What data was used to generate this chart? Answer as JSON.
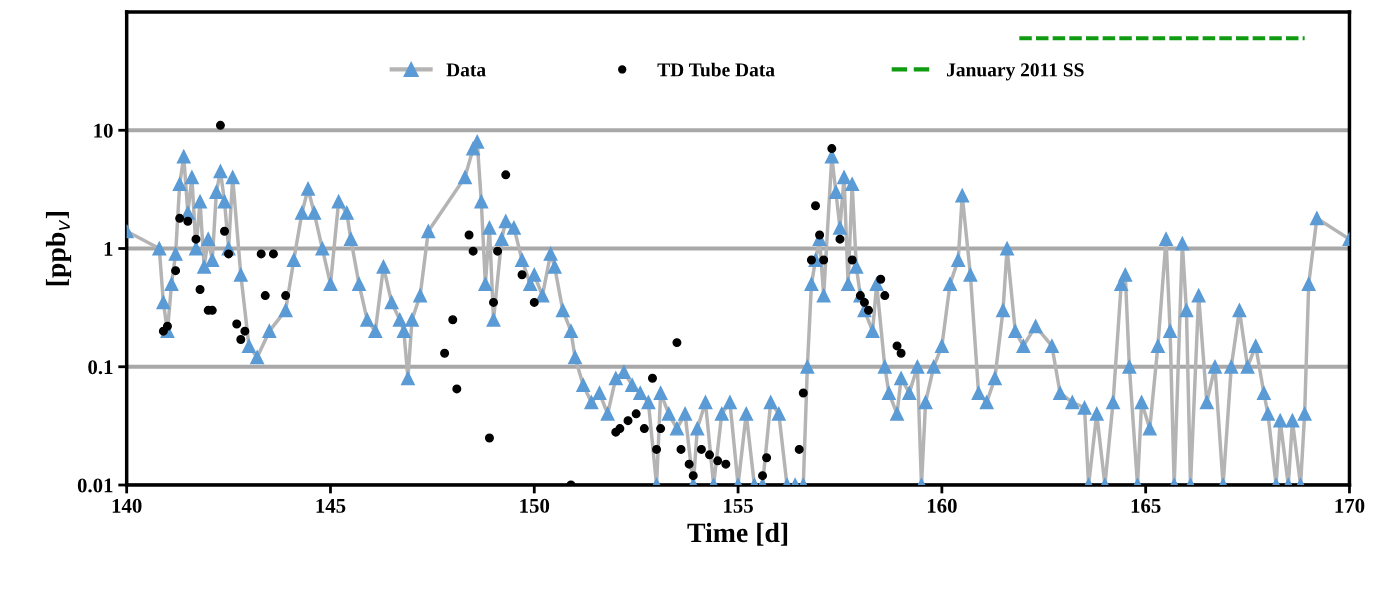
{
  "chart_data": {
    "type": "line",
    "xlabel": "Time [d]",
    "ylabel": "[ppb$_{v}$]",
    "log": "y",
    "xlim": [
      140,
      170
    ],
    "xticks": [
      140,
      145,
      150,
      155,
      160,
      165,
      170
    ],
    "ylim": [
      0.01,
      100
    ],
    "yticks": [
      {
        "value": 0.01,
        "label": "0.01"
      },
      {
        "value": 0.1,
        "label": "0.1"
      },
      {
        "value": 1,
        "label": "1"
      },
      {
        "value": 10,
        "label": "10"
      }
    ],
    "grid": "y",
    "legend": "top",
    "series": [
      {
        "name": "Data",
        "color": "#5b9bd5",
        "marker": "triangle",
        "line_style": "solid",
        "x": [
          140.0,
          140.8,
          140.9,
          141.0,
          141.1,
          141.2,
          141.3,
          141.4,
          141.5,
          141.6,
          141.7,
          141.8,
          141.9,
          142.0,
          142.1,
          142.2,
          142.3,
          142.4,
          142.5,
          142.6,
          142.8,
          143.0,
          143.2,
          143.5,
          143.9,
          144.1,
          144.3,
          144.45,
          144.6,
          144.8,
          145.0,
          145.2,
          145.4,
          145.5,
          145.7,
          145.9,
          146.1,
          146.3,
          146.5,
          146.7,
          146.8,
          146.9,
          147.0,
          147.2,
          147.4,
          148.3,
          148.5,
          148.6,
          148.7,
          148.8,
          148.9,
          149.0,
          149.2,
          149.3,
          149.5,
          149.7,
          149.9,
          150.0,
          150.2,
          150.4,
          150.5,
          150.7,
          150.9,
          151.0,
          151.2,
          151.4,
          151.6,
          151.8,
          152.0,
          152.2,
          152.4,
          152.6,
          152.8,
          153.0,
          153.1,
          153.3,
          153.5,
          153.7,
          153.9,
          154.0,
          154.2,
          154.4,
          154.6,
          154.8,
          155.0,
          155.2,
          155.4,
          155.6,
          155.8,
          156.0,
          156.2,
          156.4,
          156.6,
          156.7,
          156.8,
          156.9,
          157.0,
          157.1,
          157.3,
          157.4,
          157.5,
          157.6,
          157.7,
          157.8,
          157.9,
          158.0,
          158.1,
          158.3,
          158.4,
          158.6,
          158.7,
          158.9,
          159.0,
          159.2,
          159.4,
          159.5,
          159.6,
          159.8,
          160.0,
          160.2,
          160.4,
          160.5,
          160.7,
          160.9,
          161.1,
          161.3,
          161.5,
          161.6,
          161.8,
          162.0,
          162.3,
          162.7,
          162.9,
          163.2,
          163.5,
          163.6,
          163.8,
          164.0,
          164.2,
          164.4,
          164.5,
          164.6,
          164.8,
          164.9,
          165.1,
          165.3,
          165.5,
          165.6,
          165.7,
          165.9,
          166.0,
          166.1,
          166.3,
          166.5,
          166.7,
          166.9,
          167.1,
          167.3,
          167.5,
          167.7,
          167.9,
          168.0,
          168.2,
          168.3,
          168.5,
          168.6,
          168.8,
          168.9,
          169.0,
          169.2,
          170.0
        ],
        "values": [
          1.4,
          1.0,
          0.35,
          0.2,
          0.5,
          0.9,
          3.5,
          6,
          2,
          4,
          1.0,
          2.5,
          0.7,
          1.2,
          0.8,
          3,
          4.5,
          2.5,
          1.0,
          4,
          0.6,
          0.15,
          0.12,
          0.2,
          0.3,
          0.8,
          2,
          3.2,
          2,
          1,
          0.5,
          2.5,
          2,
          1.2,
          0.5,
          0.25,
          0.2,
          0.7,
          0.35,
          0.25,
          0.2,
          0.08,
          0.25,
          0.4,
          1.4,
          4,
          7,
          8,
          2.5,
          0.5,
          1.5,
          0.25,
          1.2,
          1.7,
          1.5,
          0.8,
          0.5,
          0.6,
          0.4,
          0.9,
          0.7,
          0.3,
          0.2,
          0.12,
          0.07,
          0.05,
          0.06,
          0.04,
          0.08,
          0.09,
          0.07,
          0.06,
          0.05,
          0.01,
          0.06,
          0.04,
          0.03,
          0.04,
          0.01,
          0.03,
          0.05,
          0.01,
          0.04,
          0.05,
          0.01,
          0.04,
          0.01,
          0.01,
          0.05,
          0.04,
          0.01,
          0.01,
          0.01,
          0.1,
          0.5,
          0.8,
          1.2,
          0.4,
          6,
          3,
          1.5,
          4,
          0.5,
          3.5,
          0.7,
          0.4,
          0.3,
          0.2,
          0.5,
          0.1,
          0.06,
          0.04,
          0.08,
          0.06,
          0.1,
          0.01,
          0.05,
          0.1,
          0.15,
          0.5,
          0.8,
          2.8,
          0.6,
          0.06,
          0.05,
          0.08,
          0.3,
          1,
          0.2,
          0.15,
          0.22,
          0.15,
          0.06,
          0.05,
          0.045,
          0.01,
          0.04,
          0.01,
          0.05,
          0.5,
          0.6,
          0.1,
          0.01,
          0.05,
          0.03,
          0.15,
          1.2,
          0.2,
          0.01,
          1.1,
          0.3,
          0.01,
          0.4,
          0.05,
          0.1,
          0.01,
          0.1,
          0.3,
          0.1,
          0.15,
          0.06,
          0.04,
          0.01,
          0.035,
          0.01,
          0.035,
          0.01,
          0.04,
          0.5,
          1.8,
          1.2
        ]
      },
      {
        "name": "TD Tube Data",
        "type": "scatter",
        "color": "#000000",
        "marker": "circle",
        "x": [
          140.9,
          141.0,
          141.2,
          141.3,
          141.5,
          141.7,
          141.8,
          142.0,
          142.1,
          142.3,
          142.4,
          142.5,
          142.7,
          142.8,
          142.9,
          143.3,
          143.6,
          143.4,
          143.9,
          147.8,
          148.0,
          148.1,
          148.4,
          148.5,
          148.9,
          149.0,
          149.1,
          149.3,
          149.7,
          150.0,
          150.9,
          152.0,
          152.1,
          152.3,
          152.5,
          152.7,
          152.9,
          153.0,
          153.1,
          153.5,
          153.6,
          153.8,
          153.9,
          154.1,
          154.3,
          154.5,
          154.7,
          155.6,
          155.7,
          156.5,
          156.6,
          156.8,
          156.9,
          157.0,
          157.1,
          157.3,
          157.5,
          157.8,
          158.0,
          158.1,
          158.2,
          158.5,
          158.6,
          158.9,
          159.0
        ],
        "values": [
          0.2,
          0.22,
          0.65,
          1.8,
          1.7,
          1.2,
          0.45,
          0.3,
          0.3,
          11,
          1.4,
          0.9,
          0.23,
          0.17,
          0.2,
          0.9,
          0.9,
          0.4,
          0.4,
          0.13,
          0.25,
          0.065,
          1.3,
          0.95,
          0.025,
          0.35,
          0.95,
          4.2,
          0.6,
          0.35,
          0.01,
          0.028,
          0.03,
          0.035,
          0.04,
          0.03,
          0.08,
          0.02,
          0.03,
          0.16,
          0.02,
          0.015,
          0.012,
          0.02,
          0.018,
          0.016,
          0.015,
          0.012,
          0.017,
          0.02,
          0.06,
          0.8,
          2.3,
          1.3,
          0.8,
          7,
          1.2,
          0.8,
          0.4,
          0.35,
          0.3,
          0.55,
          0.4,
          0.15,
          0.13
        ]
      },
      {
        "name": "January 2011 SS",
        "color": "#109c10",
        "marker": "none",
        "line_style": "dashed",
        "x": [
          161.9,
          168.9
        ],
        "values": [
          60,
          60
        ]
      }
    ]
  }
}
